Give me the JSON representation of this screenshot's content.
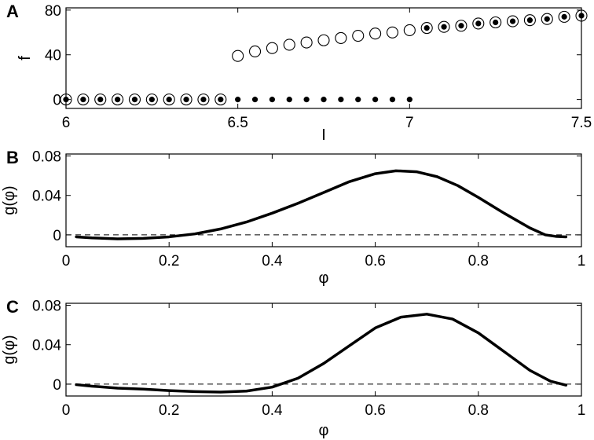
{
  "chart_data": [
    {
      "panel": "A",
      "type": "scatter",
      "xlabel": "I",
      "ylabel": "f",
      "xlim": [
        6,
        7.5
      ],
      "ylim": [
        -8,
        82
      ],
      "xticks": [
        6,
        6.5,
        7,
        7.5
      ],
      "xtick_labels": [
        "6",
        "6.5",
        "7",
        "7.5"
      ],
      "yticks": [
        0,
        40,
        80
      ],
      "ytick_labels": [
        "0",
        "40",
        "80"
      ],
      "grid": false,
      "series": [
        {
          "marker": "open-circle",
          "x": [
            6.0,
            6.05,
            6.1,
            6.15,
            6.2,
            6.25,
            6.3,
            6.35,
            6.4,
            6.45,
            6.5,
            6.55,
            6.6,
            6.65,
            6.7,
            6.75,
            6.8,
            6.85,
            6.9,
            6.95,
            7.0,
            7.05,
            7.1,
            7.15,
            7.2,
            7.25,
            7.3,
            7.35,
            7.4,
            7.45,
            7.5
          ],
          "y": [
            0,
            0,
            0,
            0,
            0,
            0,
            0,
            0,
            0,
            0,
            39,
            43,
            46,
            49,
            51,
            53,
            55,
            57,
            59,
            60,
            62,
            64,
            65,
            66,
            68,
            69,
            70,
            71,
            72,
            74,
            75
          ]
        },
        {
          "marker": "filled-dot",
          "x": [
            6.0,
            6.05,
            6.1,
            6.15,
            6.2,
            6.25,
            6.3,
            6.35,
            6.4,
            6.45,
            6.5,
            6.55,
            6.6,
            6.65,
            6.7,
            6.75,
            6.8,
            6.85,
            6.9,
            6.95,
            7.0,
            7.05,
            7.1,
            7.15,
            7.2,
            7.25,
            7.3,
            7.35,
            7.4,
            7.45,
            7.5
          ],
          "y": [
            0,
            0,
            0,
            0,
            0,
            0,
            0,
            0,
            0,
            0,
            0,
            0,
            0,
            0,
            0,
            0,
            0,
            0,
            0,
            0,
            0,
            64,
            65,
            66,
            68,
            69,
            70,
            71,
            72,
            74,
            75
          ]
        }
      ]
    },
    {
      "panel": "B",
      "type": "line",
      "xlabel": "φ",
      "ylabel": "g(φ)",
      "xlim": [
        0,
        1
      ],
      "ylim": [
        -0.012,
        0.082
      ],
      "xticks": [
        0,
        0.2,
        0.4,
        0.6,
        0.8,
        1
      ],
      "xtick_labels": [
        "0",
        "0.2",
        "0.4",
        "0.6",
        "0.8",
        "1"
      ],
      "yticks": [
        0,
        0.04,
        0.08
      ],
      "ytick_labels": [
        "0",
        "0.04",
        "0.08"
      ],
      "zero_line": "dashed",
      "grid": false,
      "x": [
        0.02,
        0.05,
        0.1,
        0.15,
        0.2,
        0.25,
        0.3,
        0.35,
        0.4,
        0.45,
        0.5,
        0.55,
        0.6,
        0.64,
        0.68,
        0.72,
        0.76,
        0.8,
        0.85,
        0.9,
        0.93,
        0.95,
        0.97
      ],
      "y": [
        -0.002,
        -0.003,
        -0.004,
        -0.0035,
        -0.002,
        0.001,
        0.006,
        0.013,
        0.022,
        0.032,
        0.043,
        0.054,
        0.062,
        0.065,
        0.064,
        0.059,
        0.05,
        0.038,
        0.022,
        0.007,
        0.0,
        -0.0015,
        -0.002
      ]
    },
    {
      "panel": "C",
      "type": "line",
      "xlabel": "φ",
      "ylabel": "g(φ)",
      "xlim": [
        0,
        1
      ],
      "ylim": [
        -0.012,
        0.082
      ],
      "xticks": [
        0,
        0.2,
        0.4,
        0.6,
        0.8,
        1
      ],
      "xtick_labels": [
        "0",
        "0.2",
        "0.4",
        "0.6",
        "0.8",
        "1"
      ],
      "yticks": [
        0,
        0.04,
        0.08
      ],
      "ytick_labels": [
        "0",
        "0.04",
        "0.08"
      ],
      "zero_line": "dashed",
      "grid": false,
      "x": [
        0.02,
        0.05,
        0.1,
        0.15,
        0.2,
        0.25,
        0.3,
        0.35,
        0.4,
        0.45,
        0.5,
        0.55,
        0.6,
        0.65,
        0.7,
        0.75,
        0.8,
        0.85,
        0.9,
        0.94,
        0.97
      ],
      "y": [
        -0.0005,
        -0.002,
        -0.004,
        -0.005,
        -0.0065,
        -0.0075,
        -0.008,
        -0.007,
        -0.003,
        0.006,
        0.021,
        0.039,
        0.057,
        0.068,
        0.071,
        0.066,
        0.052,
        0.033,
        0.014,
        0.003,
        -0.001
      ]
    }
  ]
}
